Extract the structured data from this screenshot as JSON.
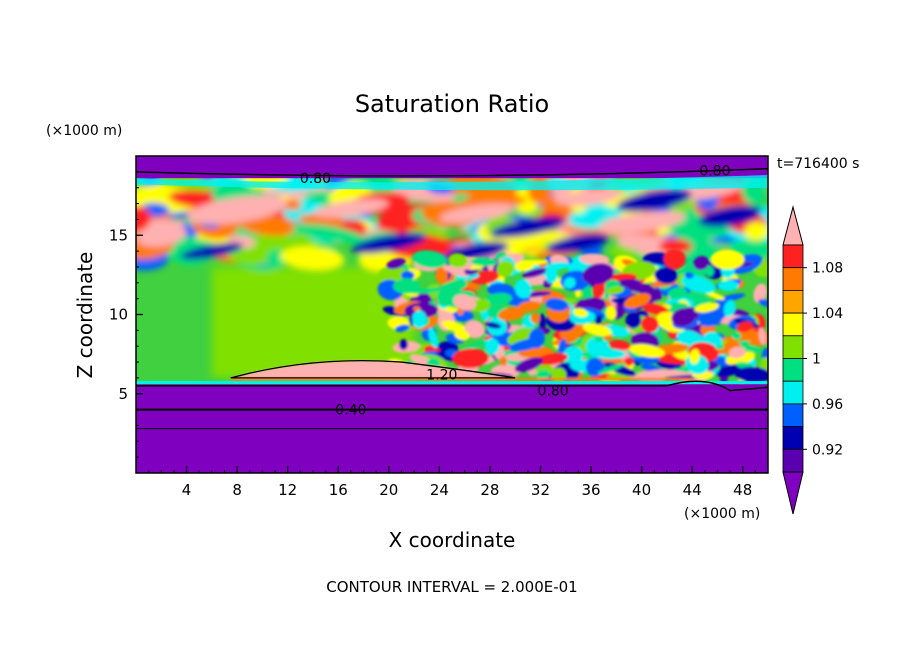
{
  "chart_data": {
    "type": "heatmap",
    "title": "Saturation Ratio",
    "xlabel": "X coordinate",
    "ylabel": "Z coordinate",
    "x_unit": "(×1000 m)",
    "y_unit": "(×1000 m)",
    "time_label": "t=716400 s",
    "footer": "CONTOUR INTERVAL = 2.000E-01",
    "xlim": [
      0,
      50
    ],
    "ylim": [
      0,
      20
    ],
    "x_ticks": [
      4,
      8,
      12,
      16,
      20,
      24,
      28,
      32,
      36,
      40,
      44,
      48
    ],
    "y_ticks": [
      5,
      10,
      15
    ],
    "colorbar_labels": [
      "1.08",
      "1.04",
      "1",
      "0.96",
      "0.92"
    ],
    "colorbar_colors": [
      "#ffb0b0",
      "#ff2020",
      "#ff7a00",
      "#ffa500",
      "#ffff00",
      "#80e000",
      "#00e080",
      "#00f0f0",
      "#0060ff",
      "#0000b0",
      "#5a00b0",
      "#8000c0"
    ],
    "contour_labels": [
      {
        "text": "0.80",
        "x": 14.2,
        "y": 18.6
      },
      {
        "text": "0.80",
        "x": 45.8,
        "y": 19.1
      },
      {
        "text": "1.20",
        "x": 24.2,
        "y": 6.2
      },
      {
        "text": "0.80",
        "x": 33.0,
        "y": 5.2
      },
      {
        "text": "0.40",
        "x": 17.0,
        "y": 4.0
      }
    ],
    "bands": [
      {
        "name": "upper-purple",
        "y0": 18.6,
        "y1": 20.0,
        "color": "#8000c0"
      },
      {
        "name": "lower-purple",
        "y0": 0.0,
        "y1": 5.6,
        "color": "#8000c0"
      }
    ]
  }
}
